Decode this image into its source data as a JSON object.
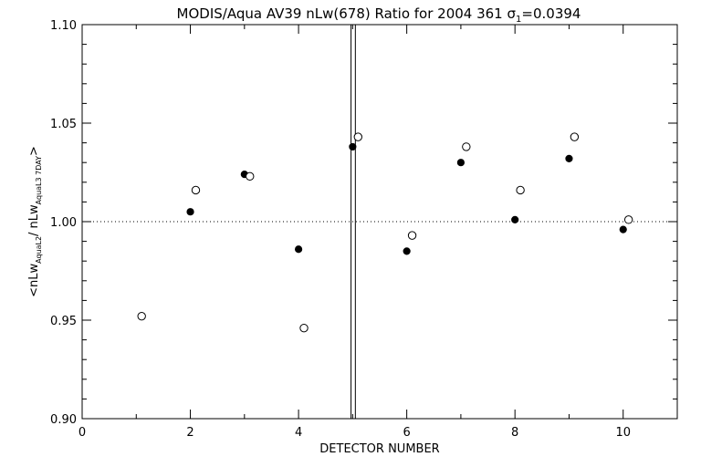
{
  "chart_data": {
    "type": "scatter",
    "title": "MODIS/Aqua AV39 nLw(678) Ratio for 2004 361 σ₁=0.0394",
    "title_parts": {
      "main": "MODIS/Aqua AV39 nLw(678) Ratio for 2004 361 σ",
      "sub": "1",
      "tail": "=0.0394"
    },
    "xlabel": "DETECTOR NUMBER",
    "ylabel": "<nLw(Aqua L2)/nLw(Aqua L3 7DAY)>",
    "ylabel_parts": {
      "open": "<nLw",
      "sub1": "AquaL2",
      "mid": "/ nLw",
      "sub2": "AquaL3 7DAY",
      "close": ">"
    },
    "xlim": [
      0,
      11
    ],
    "ylim": [
      0.9,
      1.1
    ],
    "x_ticks": [
      "0",
      "2",
      "4",
      "6",
      "8",
      "10"
    ],
    "x_tick_values": [
      0,
      2,
      4,
      6,
      8,
      10
    ],
    "y_ticks": [
      "0.90",
      "0.95",
      "1.00",
      "1.05",
      "1.10"
    ],
    "y_tick_values": [
      0.9,
      0.95,
      1.0,
      1.05,
      1.1
    ],
    "reference_line_y": 1.0,
    "vertical_lines_x": [
      4.97,
      5.05
    ],
    "series": [
      {
        "marker": "filled-circle",
        "points": [
          {
            "x": 2.0,
            "y": 1.005
          },
          {
            "x": 3.0,
            "y": 1.024
          },
          {
            "x": 4.0,
            "y": 0.986
          },
          {
            "x": 5.0,
            "y": 1.038
          },
          {
            "x": 6.0,
            "y": 0.985
          },
          {
            "x": 7.0,
            "y": 1.03
          },
          {
            "x": 8.0,
            "y": 1.001
          },
          {
            "x": 9.0,
            "y": 1.032
          },
          {
            "x": 10.0,
            "y": 0.996
          }
        ]
      },
      {
        "marker": "open-circle",
        "points": [
          {
            "x": 1.1,
            "y": 0.952
          },
          {
            "x": 2.1,
            "y": 1.016
          },
          {
            "x": 3.1,
            "y": 1.023
          },
          {
            "x": 4.1,
            "y": 0.946
          },
          {
            "x": 5.1,
            "y": 1.043
          },
          {
            "x": 6.1,
            "y": 0.993
          },
          {
            "x": 7.1,
            "y": 1.038
          },
          {
            "x": 8.1,
            "y": 1.016
          },
          {
            "x": 9.1,
            "y": 1.043
          },
          {
            "x": 10.1,
            "y": 1.001
          }
        ]
      }
    ]
  }
}
